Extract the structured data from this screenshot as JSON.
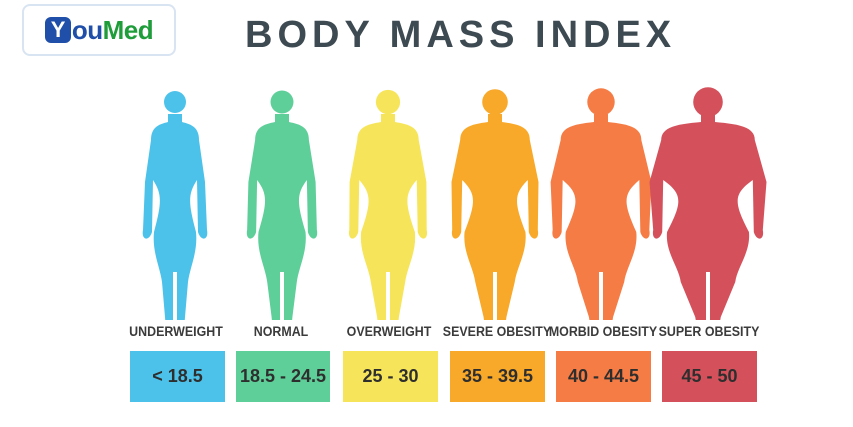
{
  "logo": {
    "y": "Y",
    "ou": "ou",
    "med": "Med"
  },
  "title": "BODY MASS INDEX",
  "categories": [
    {
      "label": "UNDERWEIGHT",
      "range": "< 18.5",
      "color": "#4cc2ea"
    },
    {
      "label": "NORMAL",
      "range": "18.5 - 24.5",
      "color": "#5fcf9a"
    },
    {
      "label": "OVERWEIGHT",
      "range": "25 - 30",
      "color": "#f6e55a"
    },
    {
      "label": "SEVERE OBESITY",
      "range": "35 - 39.5",
      "color": "#f8a92a"
    },
    {
      "label": "MORBID OBESITY",
      "range": "40 - 44.5",
      "color": "#f57c45"
    },
    {
      "label": "SUPER OBESITY",
      "range": "45 - 50",
      "color": "#d4515c"
    }
  ]
}
